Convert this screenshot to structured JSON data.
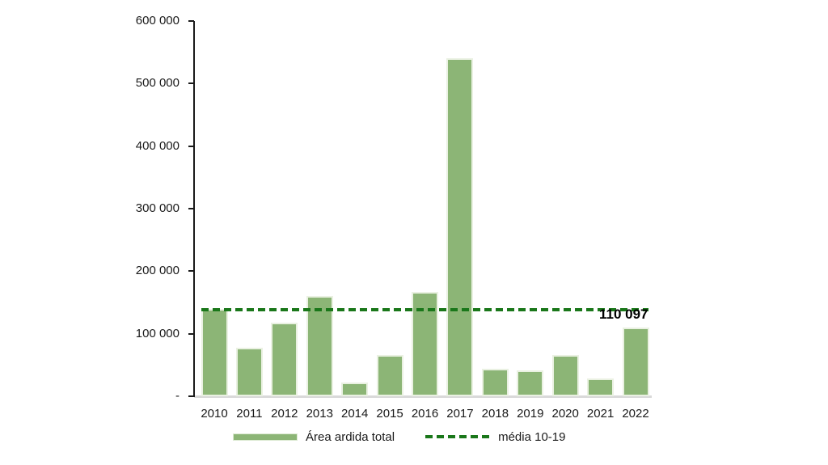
{
  "chart_data": {
    "type": "bar",
    "title": "",
    "xlabel": "",
    "ylabel": "",
    "categories": [
      "2010",
      "2011",
      "2012",
      "2013",
      "2014",
      "2015",
      "2016",
      "2017",
      "2018",
      "2019",
      "2020",
      "2021",
      "2022"
    ],
    "series": [
      {
        "name": "Área ardida total",
        "values": [
          140000,
          77000,
          118000,
          160000,
          22000,
          66000,
          167000,
          540000,
          44000,
          41000,
          66000,
          28000,
          110097
        ]
      }
    ],
    "reference_line": {
      "name": "média 10-19",
      "value": 138500
    },
    "data_labels": [
      {
        "category": "2022",
        "text": "110 097"
      }
    ],
    "ylim": [
      0,
      600000
    ],
    "ytick_interval": 100000,
    "ytick_labels_top_to_bottom": [
      "600 000",
      "500 000",
      "400 000",
      "300 000",
      "200 000",
      "100 000",
      "-"
    ],
    "grid": false,
    "legend_position": "bottom",
    "legend": [
      {
        "label": "Área ardida total",
        "marker": "bar-swatch"
      },
      {
        "label": "média 10-19",
        "marker": "dashed-line"
      }
    ]
  },
  "colors": {
    "bar_fill": "#8cb576",
    "bar_border": "#eaf1e2",
    "reference_line": "#1a771a",
    "axis_line": "#1a1a1a",
    "x_baseline": "#d9d9d9",
    "text": "#1a1a1a"
  }
}
